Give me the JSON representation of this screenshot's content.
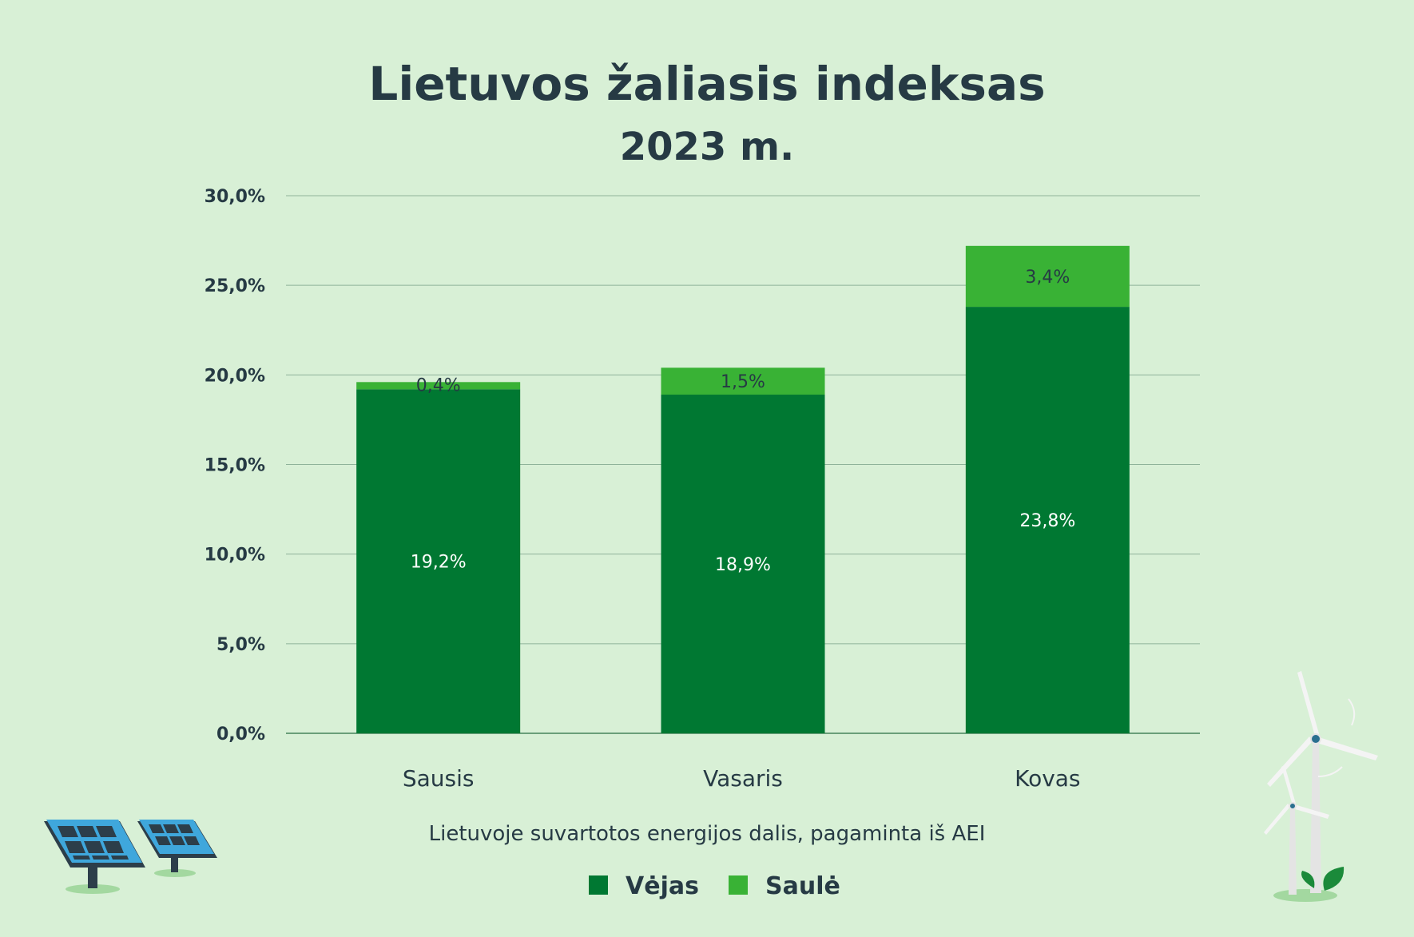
{
  "chart_data": {
    "type": "bar",
    "stacked": true,
    "title": "Lietuvos žaliasis indeksas",
    "subtitle": "2023 m.",
    "xlabel": "Lietuvoje suvartotos energijos dalis, pagaminta iš AEI",
    "ylabel": "",
    "ylim": [
      0,
      30
    ],
    "yticks": [
      "0,0%",
      "5,0%",
      "10,0%",
      "15,0%",
      "20,0%",
      "25,0%",
      "30,0%"
    ],
    "categories": [
      "Sausis",
      "Vasaris",
      "Kovas"
    ],
    "series": [
      {
        "name": "Vėjas",
        "values": [
          19.2,
          18.9,
          23.8
        ],
        "labels": [
          "19,2%",
          "18,9%",
          "23,8%"
        ],
        "color": "#007832"
      },
      {
        "name": "Saulė",
        "values": [
          0.4,
          1.5,
          3.4
        ],
        "labels": [
          "0,4%",
          "1,5%",
          "3,4%"
        ],
        "color": "#39b235"
      }
    ],
    "grid": true,
    "legend": "bottom"
  },
  "colors": {
    "background": "#d8f0d6",
    "text": "#263a44",
    "grid": "#8fb39a"
  },
  "decorations": [
    "solar-panel-icon",
    "wind-turbine-icon"
  ]
}
